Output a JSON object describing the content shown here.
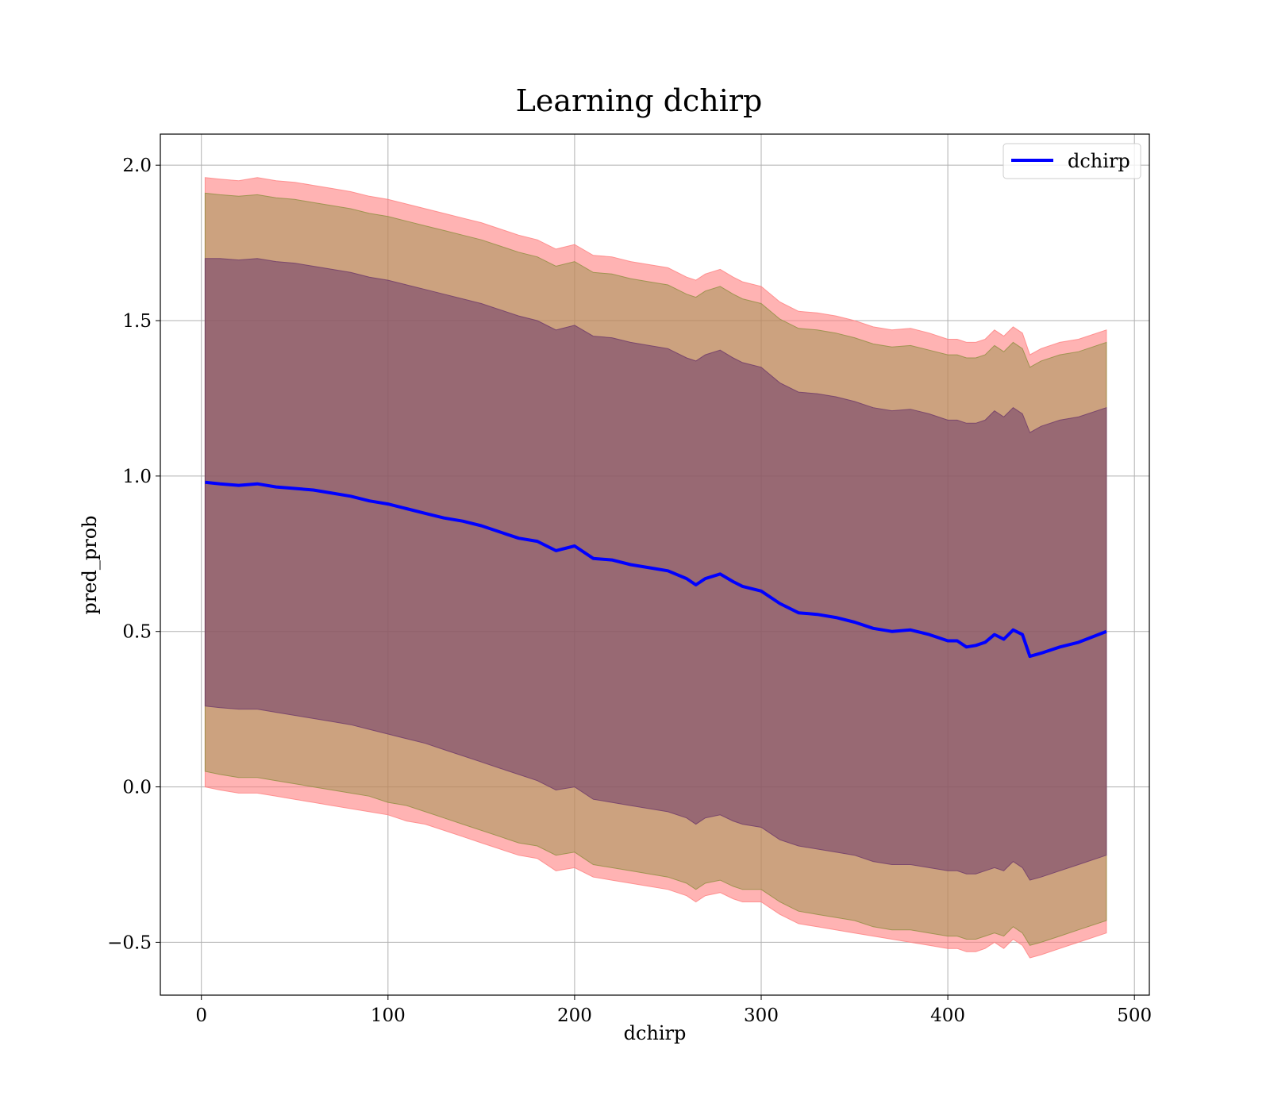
{
  "chart_data": {
    "type": "line",
    "title": "Learning dchirp",
    "xlabel": "dchirp",
    "ylabel": "pred_prob",
    "xlim": [
      -22,
      508
    ],
    "ylim": [
      -0.67,
      2.1
    ],
    "xticks": [
      0,
      100,
      200,
      300,
      400,
      500
    ],
    "yticks": [
      -0.5,
      0.0,
      0.5,
      1.0,
      1.5,
      2.0
    ],
    "xtick_labels": [
      "0",
      "100",
      "200",
      "300",
      "400",
      "500"
    ],
    "ytick_labels": [
      "−0.5",
      "0.0",
      "0.5",
      "1.0",
      "1.5",
      "2.0"
    ],
    "grid": true,
    "legend_position": "top-right",
    "series": [
      {
        "name": "dchirp",
        "color": "#0000ff",
        "x": [
          2,
          10,
          20,
          30,
          40,
          50,
          60,
          70,
          80,
          90,
          100,
          110,
          120,
          130,
          140,
          150,
          160,
          170,
          180,
          190,
          200,
          210,
          220,
          230,
          240,
          250,
          260,
          265,
          270,
          278,
          285,
          290,
          300,
          310,
          320,
          330,
          340,
          350,
          360,
          370,
          380,
          390,
          400,
          405,
          410,
          415,
          420,
          425,
          430,
          435,
          440,
          444,
          450,
          460,
          470,
          485
        ],
        "y": [
          0.98,
          0.975,
          0.97,
          0.975,
          0.965,
          0.96,
          0.955,
          0.945,
          0.935,
          0.92,
          0.91,
          0.895,
          0.88,
          0.865,
          0.855,
          0.84,
          0.82,
          0.8,
          0.79,
          0.76,
          0.775,
          0.735,
          0.73,
          0.715,
          0.705,
          0.695,
          0.67,
          0.65,
          0.67,
          0.685,
          0.66,
          0.645,
          0.63,
          0.59,
          0.56,
          0.555,
          0.545,
          0.53,
          0.51,
          0.5,
          0.505,
          0.49,
          0.47,
          0.47,
          0.45,
          0.455,
          0.465,
          0.49,
          0.475,
          0.505,
          0.49,
          0.42,
          0.43,
          0.45,
          0.465,
          0.5
        ]
      }
    ],
    "bands": [
      {
        "color": "#ff8080",
        "opacity": 0.6,
        "x": [
          2,
          10,
          20,
          30,
          40,
          50,
          60,
          70,
          80,
          90,
          100,
          110,
          120,
          130,
          140,
          150,
          160,
          170,
          180,
          190,
          200,
          210,
          220,
          230,
          240,
          250,
          260,
          265,
          270,
          278,
          285,
          290,
          300,
          310,
          320,
          330,
          340,
          350,
          360,
          370,
          380,
          390,
          400,
          405,
          410,
          415,
          420,
          425,
          430,
          435,
          440,
          444,
          450,
          460,
          470,
          485
        ],
        "lower": [
          0.0,
          -0.01,
          -0.02,
          -0.02,
          -0.03,
          -0.04,
          -0.05,
          -0.06,
          -0.07,
          -0.08,
          -0.09,
          -0.11,
          -0.12,
          -0.14,
          -0.16,
          -0.18,
          -0.2,
          -0.22,
          -0.23,
          -0.27,
          -0.26,
          -0.29,
          -0.3,
          -0.31,
          -0.32,
          -0.33,
          -0.35,
          -0.37,
          -0.35,
          -0.34,
          -0.36,
          -0.37,
          -0.37,
          -0.41,
          -0.44,
          -0.45,
          -0.46,
          -0.47,
          -0.48,
          -0.49,
          -0.5,
          -0.51,
          -0.52,
          -0.52,
          -0.53,
          -0.53,
          -0.52,
          -0.5,
          -0.52,
          -0.49,
          -0.51,
          -0.55,
          -0.54,
          -0.52,
          -0.5,
          -0.47
        ],
        "upper": [
          1.96,
          1.955,
          1.95,
          1.96,
          1.95,
          1.945,
          1.935,
          1.925,
          1.915,
          1.9,
          1.89,
          1.875,
          1.86,
          1.845,
          1.83,
          1.815,
          1.795,
          1.775,
          1.76,
          1.73,
          1.745,
          1.71,
          1.705,
          1.69,
          1.68,
          1.67,
          1.64,
          1.63,
          1.65,
          1.665,
          1.64,
          1.625,
          1.61,
          1.56,
          1.53,
          1.525,
          1.515,
          1.5,
          1.48,
          1.47,
          1.475,
          1.46,
          1.44,
          1.44,
          1.43,
          1.43,
          1.44,
          1.47,
          1.45,
          1.48,
          1.46,
          1.39,
          1.41,
          1.43,
          1.44,
          1.47
        ]
      },
      {
        "color": "#8f8f40",
        "opacity": 0.45,
        "x": [
          2,
          10,
          20,
          30,
          40,
          50,
          60,
          70,
          80,
          90,
          100,
          110,
          120,
          130,
          140,
          150,
          160,
          170,
          180,
          190,
          200,
          210,
          220,
          230,
          240,
          250,
          260,
          265,
          270,
          278,
          285,
          290,
          300,
          310,
          320,
          330,
          340,
          350,
          360,
          370,
          380,
          390,
          400,
          405,
          410,
          415,
          420,
          425,
          430,
          435,
          440,
          444,
          450,
          460,
          470,
          485
        ],
        "lower": [
          0.05,
          0.04,
          0.03,
          0.03,
          0.02,
          0.01,
          0.0,
          -0.01,
          -0.02,
          -0.03,
          -0.05,
          -0.06,
          -0.08,
          -0.1,
          -0.12,
          -0.14,
          -0.16,
          -0.18,
          -0.19,
          -0.22,
          -0.21,
          -0.25,
          -0.26,
          -0.27,
          -0.28,
          -0.29,
          -0.31,
          -0.33,
          -0.31,
          -0.3,
          -0.32,
          -0.33,
          -0.33,
          -0.37,
          -0.4,
          -0.41,
          -0.42,
          -0.43,
          -0.45,
          -0.46,
          -0.46,
          -0.47,
          -0.48,
          -0.48,
          -0.49,
          -0.49,
          -0.48,
          -0.47,
          -0.48,
          -0.45,
          -0.47,
          -0.51,
          -0.5,
          -0.48,
          -0.46,
          -0.43
        ],
        "upper": [
          1.91,
          1.905,
          1.9,
          1.905,
          1.895,
          1.89,
          1.88,
          1.87,
          1.86,
          1.845,
          1.835,
          1.82,
          1.805,
          1.79,
          1.775,
          1.76,
          1.74,
          1.72,
          1.705,
          1.675,
          1.69,
          1.655,
          1.65,
          1.635,
          1.625,
          1.615,
          1.585,
          1.575,
          1.595,
          1.61,
          1.585,
          1.57,
          1.555,
          1.505,
          1.475,
          1.47,
          1.46,
          1.445,
          1.425,
          1.415,
          1.42,
          1.405,
          1.39,
          1.39,
          1.38,
          1.38,
          1.39,
          1.42,
          1.4,
          1.43,
          1.41,
          1.35,
          1.37,
          1.39,
          1.4,
          1.43
        ]
      },
      {
        "color": "#6e3a6a",
        "opacity": 0.55,
        "x": [
          2,
          10,
          20,
          30,
          40,
          50,
          60,
          70,
          80,
          90,
          100,
          110,
          120,
          130,
          140,
          150,
          160,
          170,
          180,
          190,
          200,
          210,
          220,
          230,
          240,
          250,
          260,
          265,
          270,
          278,
          285,
          290,
          300,
          310,
          320,
          330,
          340,
          350,
          360,
          370,
          380,
          390,
          400,
          405,
          410,
          415,
          420,
          425,
          430,
          435,
          440,
          444,
          450,
          460,
          470,
          485
        ],
        "lower": [
          0.26,
          0.255,
          0.25,
          0.25,
          0.24,
          0.23,
          0.22,
          0.21,
          0.2,
          0.185,
          0.17,
          0.155,
          0.14,
          0.12,
          0.1,
          0.08,
          0.06,
          0.04,
          0.02,
          -0.01,
          0.0,
          -0.04,
          -0.05,
          -0.06,
          -0.07,
          -0.08,
          -0.1,
          -0.12,
          -0.1,
          -0.09,
          -0.11,
          -0.12,
          -0.13,
          -0.17,
          -0.19,
          -0.2,
          -0.21,
          -0.22,
          -0.24,
          -0.25,
          -0.25,
          -0.26,
          -0.27,
          -0.27,
          -0.28,
          -0.28,
          -0.27,
          -0.26,
          -0.27,
          -0.24,
          -0.26,
          -0.3,
          -0.29,
          -0.27,
          -0.25,
          -0.22
        ],
        "upper": [
          1.7,
          1.7,
          1.695,
          1.7,
          1.69,
          1.685,
          1.675,
          1.665,
          1.655,
          1.64,
          1.63,
          1.615,
          1.6,
          1.585,
          1.57,
          1.555,
          1.535,
          1.515,
          1.5,
          1.47,
          1.485,
          1.45,
          1.445,
          1.43,
          1.42,
          1.41,
          1.38,
          1.37,
          1.39,
          1.405,
          1.38,
          1.365,
          1.35,
          1.3,
          1.27,
          1.265,
          1.255,
          1.24,
          1.22,
          1.21,
          1.215,
          1.2,
          1.18,
          1.18,
          1.17,
          1.17,
          1.18,
          1.21,
          1.19,
          1.22,
          1.2,
          1.14,
          1.16,
          1.18,
          1.19,
          1.22
        ]
      }
    ]
  }
}
